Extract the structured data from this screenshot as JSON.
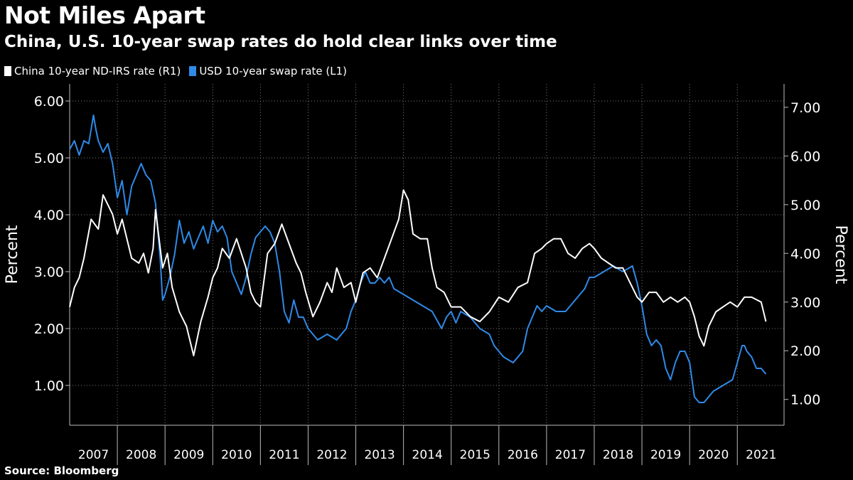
{
  "header": {
    "title": "Not Miles Apart",
    "subtitle": "China, U.S. 10-year swap rates do hold clear links over time"
  },
  "footer": {
    "source": "Source: Bloomberg"
  },
  "colors": {
    "china": "#ffffff",
    "usd": "#2f8ae8",
    "grid": "#7a7a7a",
    "background": "#000000"
  },
  "chart_data": {
    "type": "line",
    "title": "Not Miles Apart",
    "subtitle": "China, U.S. 10-year swap rates do hold clear links over time",
    "ylabel_left": "Percent",
    "ylabel_right": "Percent",
    "xlabel": "",
    "x_ticks": [
      "2007",
      "2008",
      "2009",
      "2010",
      "2011",
      "2012",
      "2013",
      "2014",
      "2015",
      "2016",
      "2017",
      "2018",
      "2019",
      "2020",
      "2021"
    ],
    "xlim": [
      2007.0,
      2021.98
    ],
    "ylim_left": [
      0.3,
      6.3
    ],
    "ylim_right": [
      0.47,
      7.48
    ],
    "y_ticks_left": [
      "1.00",
      "2.00",
      "3.00",
      "4.00",
      "5.00",
      "6.00"
    ],
    "y_ticks_right": [
      "1.00",
      "2.00",
      "3.00",
      "4.00",
      "5.00",
      "6.00",
      "7.00"
    ],
    "legend_position": "top-left",
    "series": [
      {
        "name": "China 10-year ND-IRS rate (R1)",
        "axis": "right",
        "color": "#ffffff",
        "x": [
          2007.0,
          2007.1,
          2007.2,
          2007.3,
          2007.45,
          2007.6,
          2007.7,
          2007.8,
          2007.9,
          2008.0,
          2008.1,
          2008.2,
          2008.3,
          2008.45,
          2008.55,
          2008.65,
          2008.75,
          2008.8,
          2008.85,
          2008.95,
          2009.05,
          2009.15,
          2009.3,
          2009.45,
          2009.6,
          2009.75,
          2009.9,
          2010.0,
          2010.1,
          2010.2,
          2010.35,
          2010.5,
          2010.6,
          2010.7,
          2010.8,
          2010.9,
          2011.0,
          2011.15,
          2011.3,
          2011.45,
          2011.6,
          2011.75,
          2011.85,
          2011.95,
          2012.1,
          2012.25,
          2012.4,
          2012.5,
          2012.6,
          2012.75,
          2012.9,
          2013.0,
          2013.15,
          2013.3,
          2013.45,
          2013.6,
          2013.75,
          2013.9,
          2014.0,
          2014.1,
          2014.2,
          2014.35,
          2014.5,
          2014.6,
          2014.7,
          2014.85,
          2015.0,
          2015.2,
          2015.4,
          2015.6,
          2015.8,
          2016.0,
          2016.2,
          2016.4,
          2016.6,
          2016.75,
          2016.9,
          2017.0,
          2017.15,
          2017.3,
          2017.45,
          2017.6,
          2017.75,
          2017.9,
          2018.0,
          2018.15,
          2018.3,
          2018.45,
          2018.6,
          2018.75,
          2018.9,
          2019.0,
          2019.15,
          2019.3,
          2019.45,
          2019.6,
          2019.75,
          2019.9,
          2020.0,
          2020.1,
          2020.2,
          2020.3,
          2020.4,
          2020.55,
          2020.7,
          2020.85,
          2021.0,
          2021.15,
          2021.3,
          2021.5,
          2021.6
        ],
        "values": [
          2.9,
          3.3,
          3.5,
          3.9,
          4.7,
          4.5,
          5.2,
          5.0,
          4.8,
          4.4,
          4.7,
          4.3,
          3.9,
          3.8,
          4.0,
          3.6,
          4.1,
          4.9,
          4.5,
          3.7,
          4.0,
          3.3,
          2.8,
          2.5,
          1.9,
          2.6,
          3.1,
          3.5,
          3.7,
          4.1,
          3.9,
          4.3,
          4.0,
          3.7,
          3.2,
          3.0,
          2.9,
          4.0,
          4.2,
          4.6,
          4.2,
          3.8,
          3.6,
          3.2,
          2.7,
          3.0,
          3.4,
          3.2,
          3.7,
          3.3,
          3.4,
          3.0,
          3.6,
          3.7,
          3.5,
          3.9,
          4.3,
          4.7,
          5.3,
          5.1,
          4.4,
          4.3,
          4.3,
          3.7,
          3.3,
          3.2,
          2.9,
          2.9,
          2.7,
          2.6,
          2.8,
          3.1,
          3.0,
          3.3,
          3.4,
          4.0,
          4.1,
          4.2,
          4.3,
          4.3,
          4.0,
          3.9,
          4.1,
          4.2,
          4.1,
          3.9,
          3.8,
          3.7,
          3.7,
          3.4,
          3.1,
          3.0,
          3.2,
          3.2,
          3.0,
          3.1,
          3.0,
          3.1,
          3.0,
          2.7,
          2.3,
          2.1,
          2.5,
          2.8,
          2.9,
          3.0,
          2.9,
          3.1,
          3.1,
          3.0,
          2.6
        ]
      },
      {
        "name": "USD 10-year swap rate (L1)",
        "axis": "left",
        "color": "#2f8ae8",
        "x": [
          2007.0,
          2007.1,
          2007.2,
          2007.3,
          2007.4,
          2007.45,
          2007.5,
          2007.55,
          2007.6,
          2007.7,
          2007.8,
          2007.9,
          2008.0,
          2008.1,
          2008.2,
          2008.3,
          2008.4,
          2008.5,
          2008.6,
          2008.7,
          2008.8,
          2008.9,
          2008.95,
          2009.0,
          2009.1,
          2009.2,
          2009.3,
          2009.4,
          2009.5,
          2009.6,
          2009.7,
          2009.8,
          2009.9,
          2010.0,
          2010.1,
          2010.2,
          2010.3,
          2010.4,
          2010.5,
          2010.6,
          2010.7,
          2010.8,
          2010.9,
          2011.0,
          2011.1,
          2011.2,
          2011.3,
          2011.4,
          2011.5,
          2011.6,
          2011.7,
          2011.8,
          2011.9,
          2012.0,
          2012.2,
          2012.4,
          2012.6,
          2012.8,
          2012.9,
          2013.0,
          2013.1,
          2013.2,
          2013.3,
          2013.4,
          2013.5,
          2013.6,
          2013.7,
          2013.8,
          2014.0,
          2014.2,
          2014.4,
          2014.6,
          2014.8,
          2014.9,
          2015.0,
          2015.1,
          2015.2,
          2015.4,
          2015.6,
          2015.8,
          2015.9,
          2016.0,
          2016.1,
          2016.3,
          2016.5,
          2016.6,
          2016.8,
          2016.9,
          2017.0,
          2017.2,
          2017.4,
          2017.6,
          2017.8,
          2017.9,
          2018.0,
          2018.2,
          2018.4,
          2018.6,
          2018.8,
          2018.9,
          2019.0,
          2019.1,
          2019.2,
          2019.3,
          2019.4,
          2019.5,
          2019.6,
          2019.7,
          2019.8,
          2019.9,
          2020.0,
          2020.1,
          2020.15,
          2020.2,
          2020.3,
          2020.5,
          2020.7,
          2020.9,
          2021.0,
          2021.1,
          2021.15,
          2021.2,
          2021.3,
          2021.4,
          2021.5,
          2021.6
        ],
        "values": [
          5.15,
          5.3,
          5.05,
          5.3,
          5.25,
          5.5,
          5.75,
          5.5,
          5.3,
          5.1,
          5.25,
          4.9,
          4.3,
          4.6,
          4.0,
          4.5,
          4.7,
          4.9,
          4.7,
          4.6,
          4.2,
          3.2,
          2.5,
          2.6,
          2.9,
          3.3,
          3.9,
          3.5,
          3.7,
          3.4,
          3.6,
          3.8,
          3.5,
          3.9,
          3.7,
          3.8,
          3.6,
          3.0,
          2.8,
          2.6,
          2.9,
          3.3,
          3.6,
          3.7,
          3.8,
          3.7,
          3.5,
          3.0,
          2.3,
          2.1,
          2.5,
          2.2,
          2.2,
          2.0,
          1.8,
          1.9,
          1.8,
          2.0,
          2.3,
          2.5,
          2.8,
          3.0,
          2.8,
          2.8,
          2.9,
          2.8,
          2.9,
          2.7,
          2.6,
          2.5,
          2.4,
          2.3,
          2.0,
          2.2,
          2.3,
          2.1,
          2.3,
          2.2,
          2.0,
          1.9,
          1.7,
          1.6,
          1.5,
          1.4,
          1.6,
          2.0,
          2.4,
          2.3,
          2.4,
          2.3,
          2.3,
          2.5,
          2.7,
          2.9,
          2.9,
          3.0,
          3.1,
          3.0,
          3.1,
          2.8,
          2.4,
          1.9,
          1.7,
          1.8,
          1.7,
          1.3,
          1.1,
          1.4,
          1.6,
          1.6,
          1.4,
          0.8,
          0.75,
          0.7,
          0.7,
          0.9,
          1.0,
          1.1,
          1.4,
          1.7,
          1.7,
          1.6,
          1.5,
          1.3,
          1.3,
          1.2
        ]
      }
    ]
  }
}
